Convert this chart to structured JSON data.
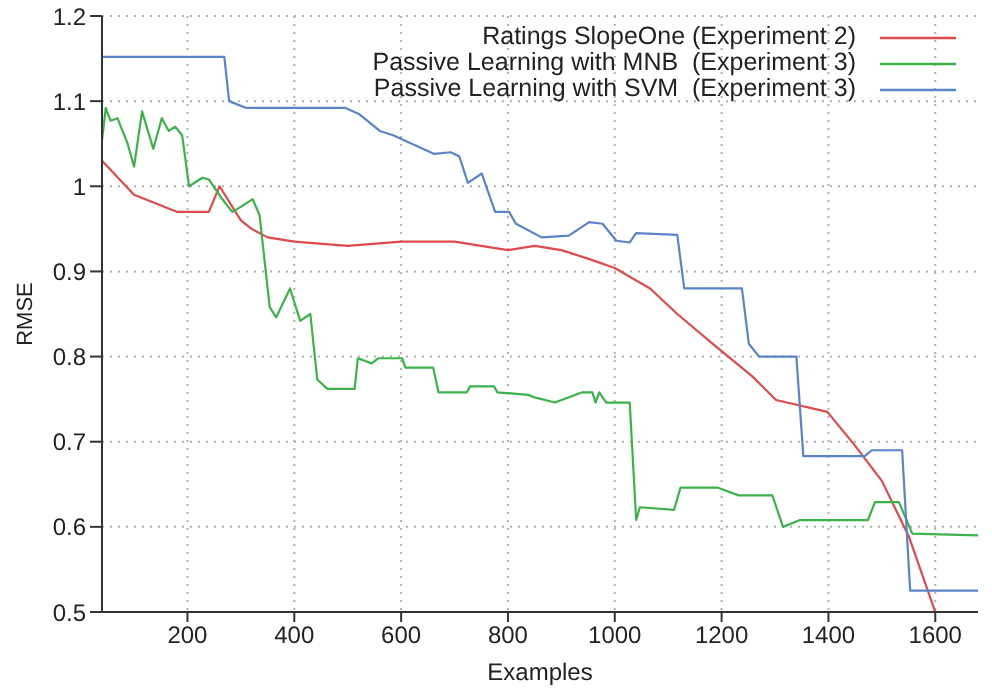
{
  "chart_data": {
    "type": "line",
    "xlabel": "Examples",
    "ylabel": "RMSE",
    "xlim": [
      40,
      1680
    ],
    "xticks": [
      200,
      400,
      600,
      800,
      1000,
      1200,
      1400,
      1600
    ],
    "ylim": [
      0.5,
      1.2
    ],
    "yticks": [
      0.5,
      0.6,
      0.7,
      0.8,
      0.9,
      1,
      1.1,
      1.2
    ],
    "grid": true,
    "legend": "top right",
    "line_style": "solid",
    "marker": "none",
    "series": [
      {
        "name": "Ratings SlopeOne (Experiment 2)",
        "color": "#e04a4a",
        "x": [
          40,
          100,
          180,
          240,
          260,
          300,
          320,
          350,
          400,
          500,
          600,
          700,
          800,
          850,
          900,
          950,
          1000,
          1066,
          1117,
          1193,
          1257,
          1302,
          1398,
          1449,
          1500,
          1551,
          1600
        ],
        "values": [
          1.03,
          0.99,
          0.97,
          0.97,
          1.0,
          0.96,
          0.95,
          0.94,
          0.935,
          0.93,
          0.935,
          0.935,
          0.925,
          0.93,
          0.925,
          0.915,
          0.904,
          0.88,
          0.85,
          0.81,
          0.777,
          0.749,
          0.735,
          0.696,
          0.654,
          0.588,
          0.5
        ]
      },
      {
        "name": "Passive Learning with MNB  (Experiment 3)",
        "color": "#3cb34a",
        "x": [
          40,
          47,
          56,
          69,
          88,
          100,
          115,
          136,
          152,
          165,
          177,
          190,
          203,
          228,
          240,
          265,
          284,
          303,
          322,
          335,
          354,
          366,
          392,
          411,
          430,
          443,
          462,
          513,
          519,
          545,
          557,
          602,
          608,
          660,
          670,
          723,
          729,
          774,
          780,
          838,
          850,
          888,
          939,
          958,
          964,
          971,
          984,
          1028,
          1040,
          1047,
          1111,
          1123,
          1193,
          1232,
          1295,
          1315,
          1347,
          1474,
          1487,
          1532,
          1557,
          1680
        ],
        "values": [
          1.054,
          1.092,
          1.077,
          1.08,
          1.05,
          1.023,
          1.088,
          1.044,
          1.08,
          1.065,
          1.07,
          1.06,
          1.0,
          1.01,
          1.008,
          0.985,
          0.97,
          0.977,
          0.985,
          0.966,
          0.858,
          0.846,
          0.88,
          0.842,
          0.85,
          0.773,
          0.762,
          0.762,
          0.798,
          0.792,
          0.798,
          0.798,
          0.787,
          0.787,
          0.758,
          0.758,
          0.765,
          0.765,
          0.758,
          0.755,
          0.752,
          0.746,
          0.758,
          0.758,
          0.746,
          0.758,
          0.746,
          0.746,
          0.608,
          0.623,
          0.62,
          0.646,
          0.646,
          0.637,
          0.637,
          0.6,
          0.608,
          0.608,
          0.629,
          0.629,
          0.592,
          0.59
        ]
      },
      {
        "name": "Passive Learning with SVM  (Experiment 3)",
        "color": "#5a84c8",
        "x": [
          40,
          269,
          278,
          310,
          496,
          521,
          560,
          585,
          662,
          693,
          709,
          725,
          751,
          776,
          802,
          815,
          863,
          914,
          952,
          977,
          1003,
          1028,
          1040,
          1117,
          1130,
          1238,
          1251,
          1270,
          1340,
          1353,
          1468,
          1481,
          1538,
          1553,
          1680
        ],
        "values": [
          1.152,
          1.152,
          1.1,
          1.092,
          1.092,
          1.085,
          1.065,
          1.06,
          1.038,
          1.04,
          1.035,
          1.004,
          1.015,
          0.97,
          0.97,
          0.956,
          0.94,
          0.942,
          0.958,
          0.956,
          0.936,
          0.934,
          0.945,
          0.943,
          0.88,
          0.88,
          0.815,
          0.8,
          0.8,
          0.683,
          0.683,
          0.69,
          0.69,
          0.525,
          0.525
        ]
      }
    ]
  }
}
